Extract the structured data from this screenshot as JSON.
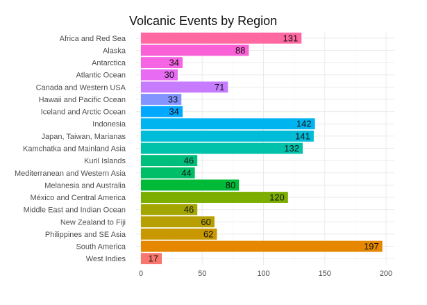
{
  "chart_data": {
    "type": "bar",
    "orientation": "horizontal",
    "title": "Volcanic Events by Region",
    "xlabel": "",
    "ylabel": "",
    "categories": [
      "Africa and Red Sea",
      "Alaska",
      "Antarctica",
      "Atlantic Ocean",
      "Canada and Western USA",
      "Hawaii and Pacific Ocean",
      "Iceland and Arctic Ocean",
      "Indonesia",
      "Japan, Taiwan, Marianas",
      "Kamchatka and Mainland Asia",
      "Kuril Islands",
      "Mediterranean and Western Asia",
      "Melanesia and Australia",
      "México and Central America",
      "Middle East and Indian Ocean",
      "New Zealand to Fiji",
      "Philippines and SE Asia",
      "South America",
      "West Indies"
    ],
    "values": [
      131,
      88,
      34,
      30,
      71,
      33,
      34,
      142,
      141,
      132,
      46,
      44,
      80,
      120,
      46,
      60,
      62,
      197,
      17
    ],
    "colors": [
      "#FF68A1",
      "#FB61D7",
      "#F564E3",
      "#E76BF3",
      "#C77CFF",
      "#8494FF",
      "#00A9FF",
      "#00B4EF",
      "#00BCD8",
      "#00C1AA",
      "#00BF7D",
      "#00BE67",
      "#00BA38",
      "#7CAE00",
      "#A3A500",
      "#B79F00",
      "#C99800",
      "#E58700",
      "#F8766D"
    ],
    "xlim": [
      0,
      205
    ],
    "xticks": [
      0,
      50,
      100,
      150,
      200
    ],
    "grid": true,
    "legend": "none"
  }
}
